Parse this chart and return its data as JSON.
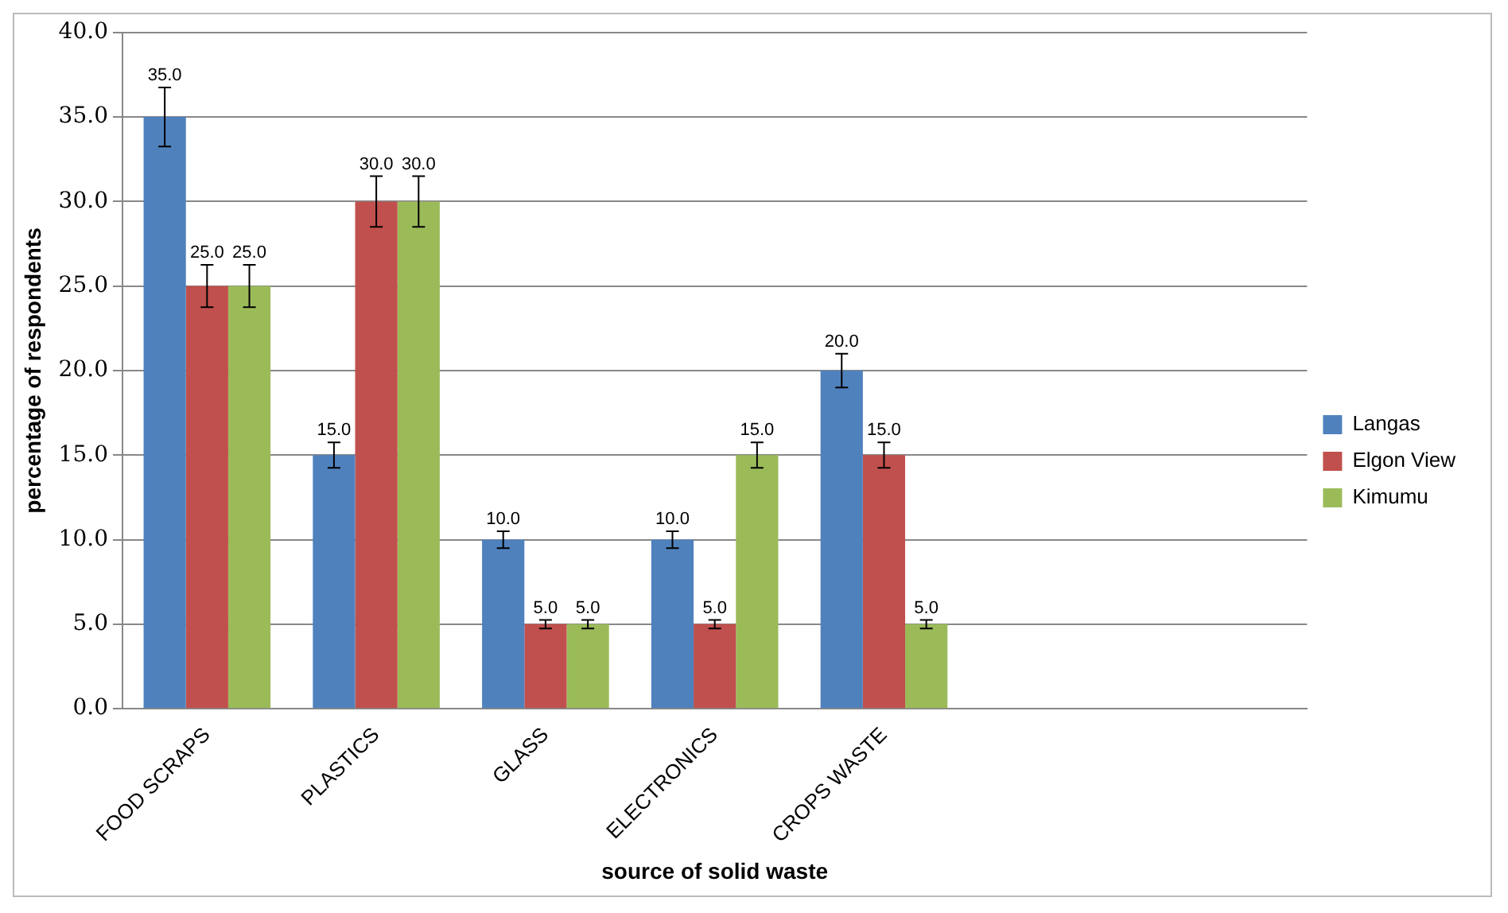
{
  "chart_data": {
    "type": "bar",
    "xlabel": "source of solid waste",
    "ylabel": "percentage of respondents",
    "categories": [
      "FOOD SCRAPS",
      "PLASTICS",
      "GLASS",
      "ELECTRONICS",
      "CROPS WASTE",
      null,
      null
    ],
    "series": [
      {
        "name": "Langas",
        "color": "#4f81bd",
        "values": [
          35,
          15,
          10,
          10,
          20,
          null,
          null
        ],
        "value_labels": [
          "35.0",
          "15.0",
          "10.0",
          "10.0",
          "20.0",
          null,
          null
        ],
        "errors": [
          1.75,
          0.75,
          0.5,
          0.5,
          1,
          null,
          null
        ]
      },
      {
        "name": "Elgon View",
        "color": "#c0504d",
        "values": [
          25,
          30,
          5,
          5,
          15,
          null,
          null
        ],
        "value_labels": [
          "25.0",
          "30.0",
          "5.0",
          "5.0",
          "15.0",
          null,
          null
        ],
        "errors": [
          1.25,
          1.5,
          0.25,
          0.25,
          0.75,
          null,
          null
        ]
      },
      {
        "name": "Kimumu",
        "color": "#9bbb59",
        "values": [
          25,
          30,
          5,
          15,
          5,
          null,
          null
        ],
        "value_labels": [
          "25.0",
          "30.0",
          "5.0",
          "15.0",
          "5.0",
          null,
          null
        ],
        "errors": [
          1.25,
          1.5,
          0.25,
          0.75,
          0.25,
          null,
          null
        ]
      }
    ],
    "ylim": [
      0,
      40
    ],
    "yticks": [
      {
        "value": 0,
        "label": "0.0"
      },
      {
        "value": 5,
        "label": "5.0"
      },
      {
        "value": 10,
        "label": "10.0"
      },
      {
        "value": 15,
        "label": "15.0"
      },
      {
        "value": 20,
        "label": "20.0"
      },
      {
        "value": 25,
        "label": "25.0"
      },
      {
        "value": 30,
        "label": "30.0"
      },
      {
        "value": 35,
        "label": "35.0"
      },
      {
        "value": 40,
        "label": "40.0"
      }
    ],
    "grid": "y",
    "legend": "right"
  }
}
